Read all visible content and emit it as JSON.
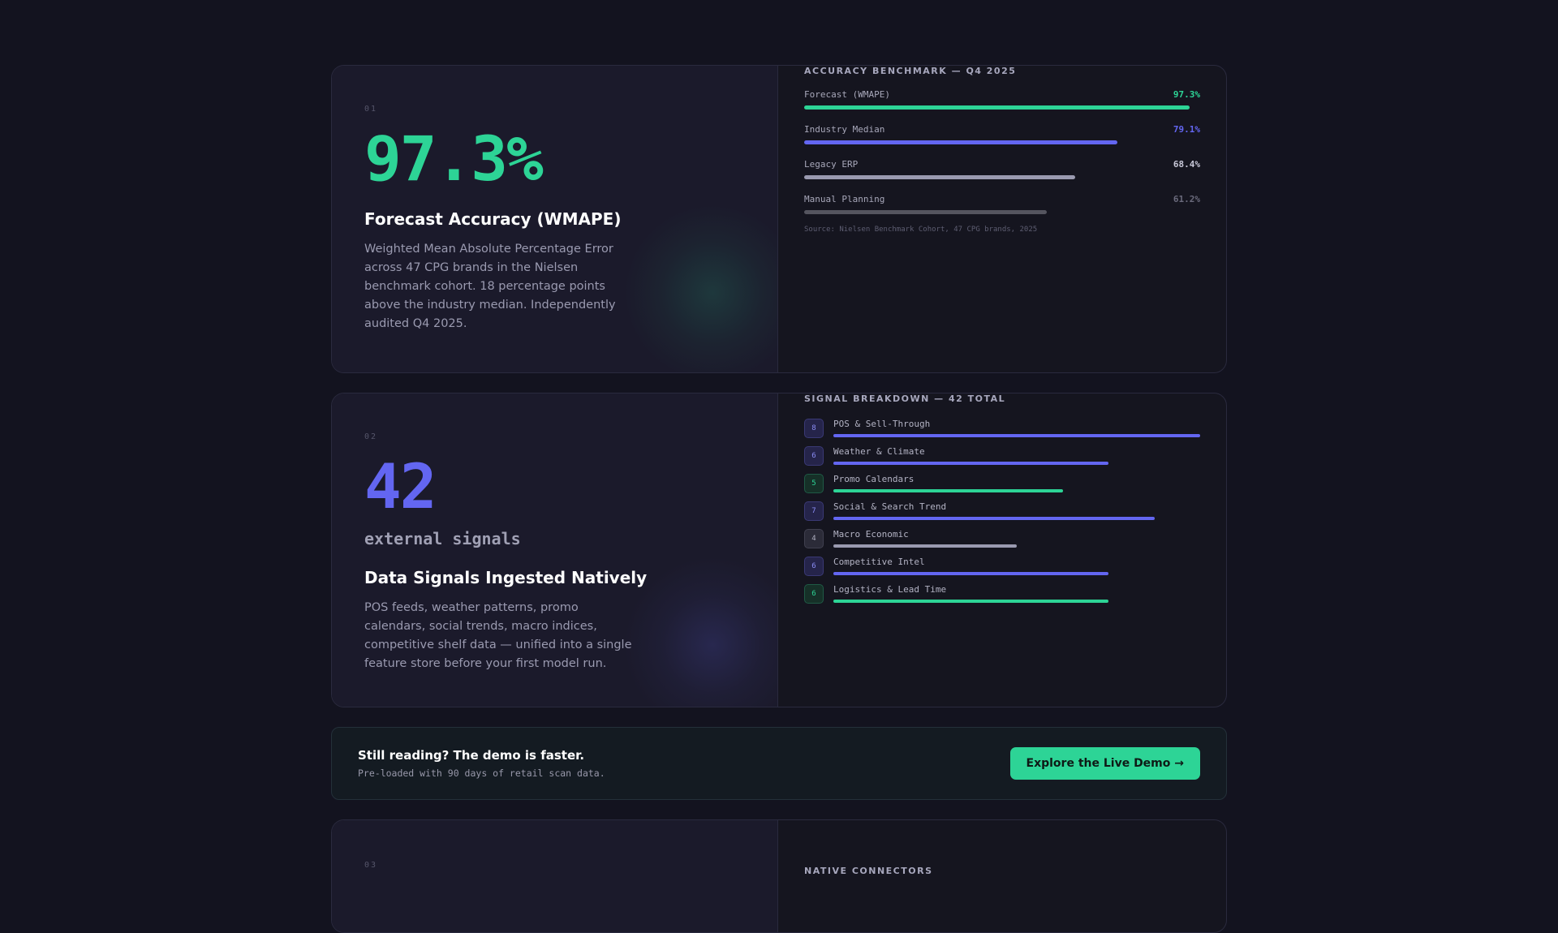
{
  "section1": {
    "index": "01",
    "metric": "97.3%",
    "title": "Forecast Accuracy (WMAPE)",
    "description": "Weighted Mean Absolute Percentage Error across 47 CPG brands in the Nielsen benchmark cohort. 18 percentage points above the industry median. Independently audited Q4 2025.",
    "panel_title": "ACCURACY BENCHMARK — Q4 2025",
    "benchmarks": [
      {
        "label": "Forecast (WMAPE)",
        "value_text": "97.3%",
        "value": 97.3,
        "color": "#2dd496"
      },
      {
        "label": "Industry Median",
        "value_text": "79.1%",
        "value": 79.1,
        "color": "#6366f1"
      },
      {
        "label": "Legacy ERP",
        "value_text": "68.4%",
        "value": 68.4,
        "color": "#9a9ab0"
      },
      {
        "label": "Manual Planning",
        "value_text": "61.2%",
        "value": 61.2,
        "color": "#55555f"
      }
    ],
    "source": "Source: Nielsen Benchmark Cohort, 47 CPG brands, 2025"
  },
  "section2": {
    "index": "02",
    "metric": "42",
    "metric_sub": "external signals",
    "title": "Data Signals Ingested Natively",
    "description": "POS feeds, weather patterns, promo calendars, social trends, macro indices, competitive shelf data — unified into a single feature store before your first model run.",
    "panel_title": "SIGNAL BREAKDOWN — 42 TOTAL",
    "max": 8,
    "signals": [
      {
        "count": "8",
        "count_value": 8,
        "label": "POS & Sell-Through",
        "color": "#6366f1",
        "badge": "purple"
      },
      {
        "count": "6",
        "count_value": 6,
        "label": "Weather & Climate",
        "color": "#6366f1",
        "badge": "purple"
      },
      {
        "count": "5",
        "count_value": 5,
        "label": "Promo Calendars",
        "color": "#2dd496",
        "badge": "green"
      },
      {
        "count": "7",
        "count_value": 7,
        "label": "Social & Search Trend",
        "color": "#6366f1",
        "badge": "purple"
      },
      {
        "count": "4",
        "count_value": 4,
        "label": "Macro Economic",
        "color": "#9a9ab0",
        "badge": "gray"
      },
      {
        "count": "6",
        "count_value": 6,
        "label": "Competitive Intel",
        "color": "#6366f1",
        "badge": "purple"
      },
      {
        "count": "6",
        "count_value": 6,
        "label": "Logistics & Lead Time",
        "color": "#2dd496",
        "badge": "green"
      }
    ]
  },
  "cta": {
    "title": "Still reading? The demo is faster.",
    "subtitle": "Pre-loaded with 90 days of retail scan data.",
    "button_label": "Explore the Live Demo →"
  },
  "section3": {
    "index": "03",
    "panel_title": "NATIVE CONNECTORS"
  }
}
